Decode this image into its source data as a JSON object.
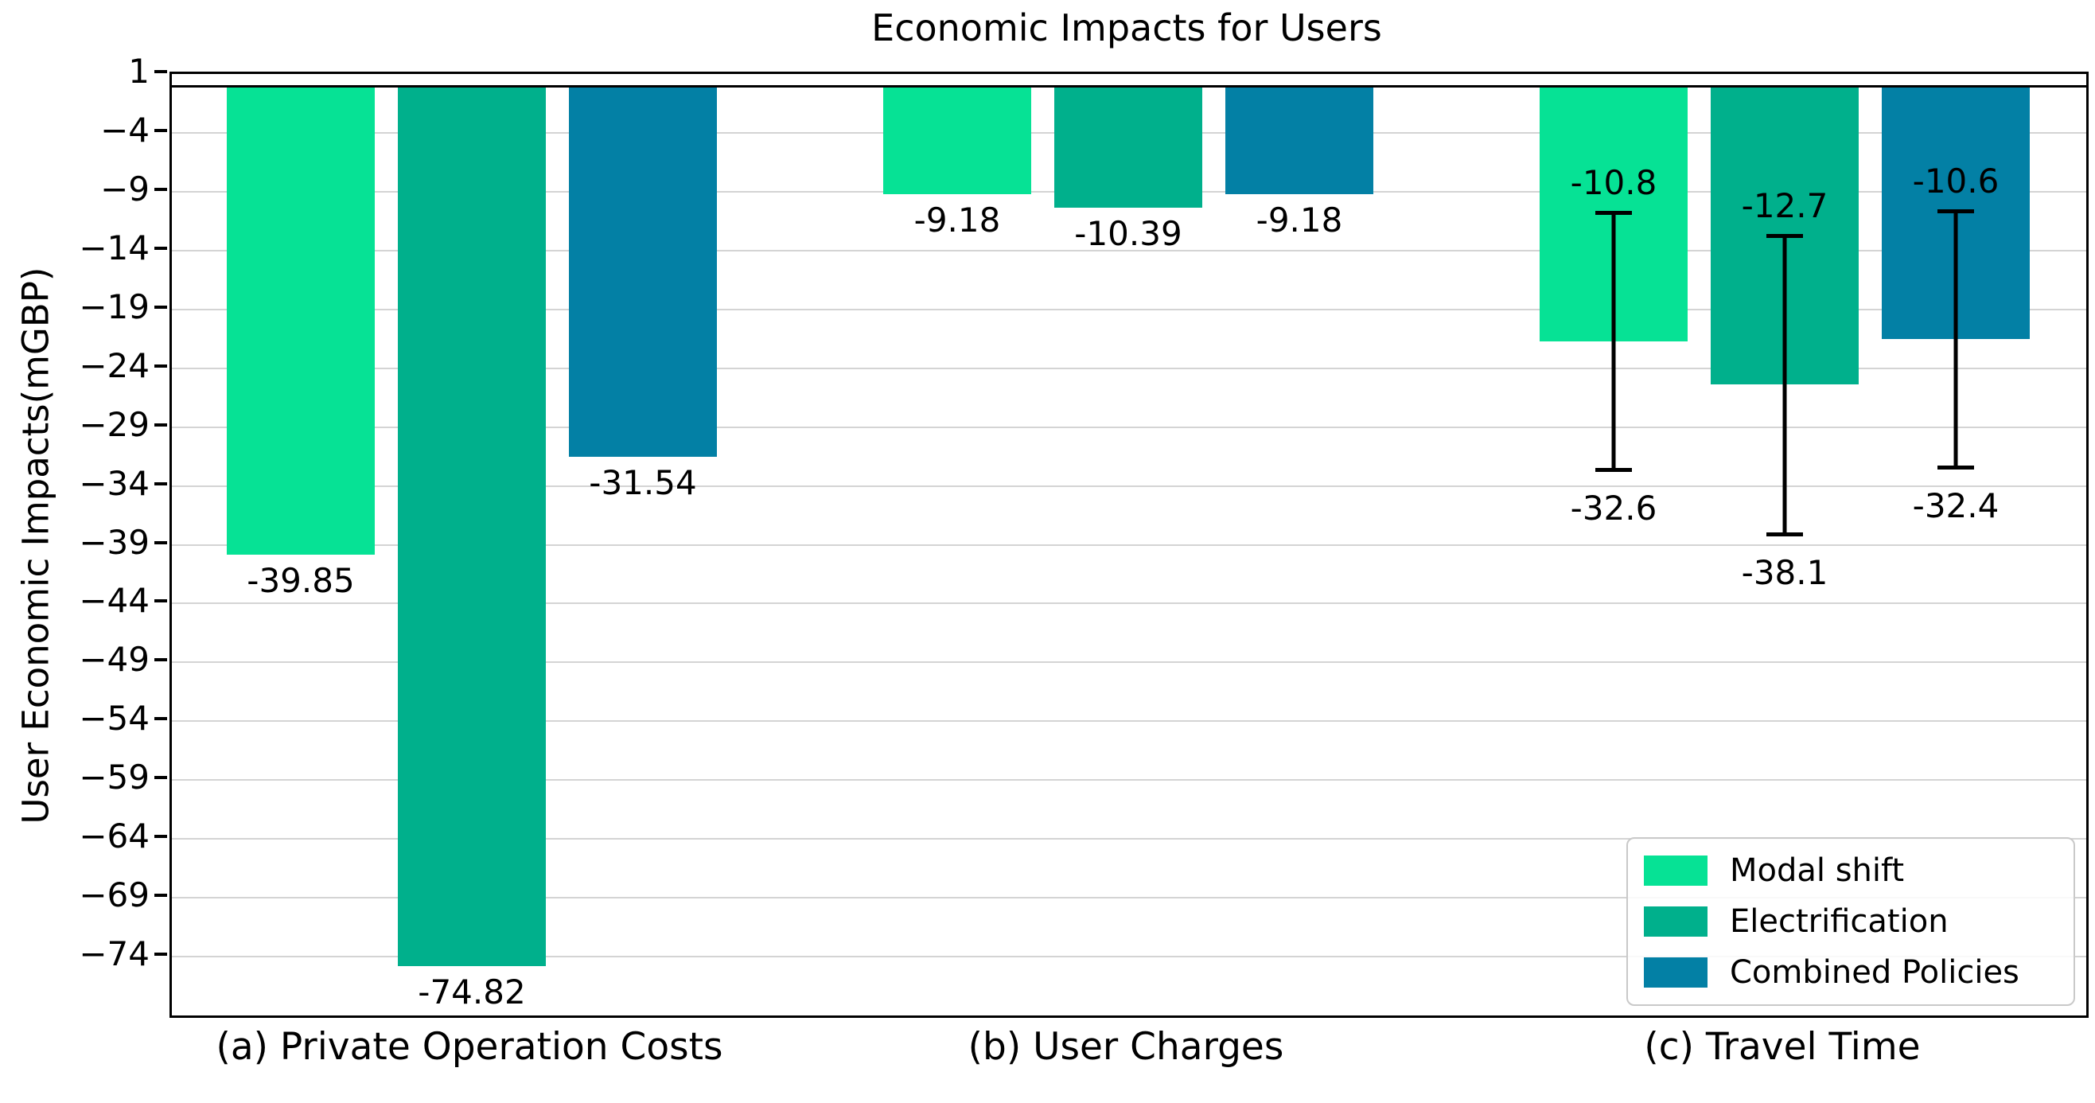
{
  "chart_data": {
    "type": "bar",
    "title": "Economic Impacts for Users",
    "ylabel": "User Economic Impacts(mGBP)",
    "xlabel": "",
    "ylim": [
      -79,
      1
    ],
    "baseline_value": 0,
    "grid": true,
    "legend_position": "lower right",
    "yticks": [
      {
        "value": 1,
        "label": "1"
      },
      {
        "value": -4,
        "label": "−4"
      },
      {
        "value": -9,
        "label": "−9"
      },
      {
        "value": -14,
        "label": "−14"
      },
      {
        "value": -19,
        "label": "−19"
      },
      {
        "value": -24,
        "label": "−24"
      },
      {
        "value": -29,
        "label": "−29"
      },
      {
        "value": -34,
        "label": "−34"
      },
      {
        "value": -39,
        "label": "−39"
      },
      {
        "value": -44,
        "label": "−44"
      },
      {
        "value": -49,
        "label": "−49"
      },
      {
        "value": -54,
        "label": "−54"
      },
      {
        "value": -59,
        "label": "−59"
      },
      {
        "value": -64,
        "label": "−64"
      },
      {
        "value": -69,
        "label": "−69"
      },
      {
        "value": -74,
        "label": "−74"
      }
    ],
    "series": [
      {
        "name": "Modal shift",
        "color": "#06E295"
      },
      {
        "name": "Electrification",
        "color": "#00B08C"
      },
      {
        "name": "Combined Policies",
        "color": "#0380A5"
      }
    ],
    "groups": [
      {
        "label": "(a) Private Operation Costs",
        "values": [
          -39.85,
          -74.82,
          -31.54
        ],
        "value_labels": [
          "-39.85",
          "-74.82",
          "-31.54"
        ]
      },
      {
        "label": "(b) User Charges",
        "values": [
          -9.18,
          -10.39,
          -9.18
        ],
        "value_labels": [
          "-9.18",
          "-10.39",
          "-9.18"
        ]
      },
      {
        "label": "(c) Travel Time",
        "values": [
          -21.7,
          -25.4,
          -21.5
        ],
        "error_high": [
          -10.8,
          -12.7,
          -10.6
        ],
        "error_low": [
          -32.6,
          -38.1,
          -32.4
        ],
        "high_labels": [
          "-10.8",
          "-12.7",
          "-10.6"
        ],
        "low_labels": [
          "-32.6",
          "-38.1",
          "-32.4"
        ]
      }
    ]
  }
}
